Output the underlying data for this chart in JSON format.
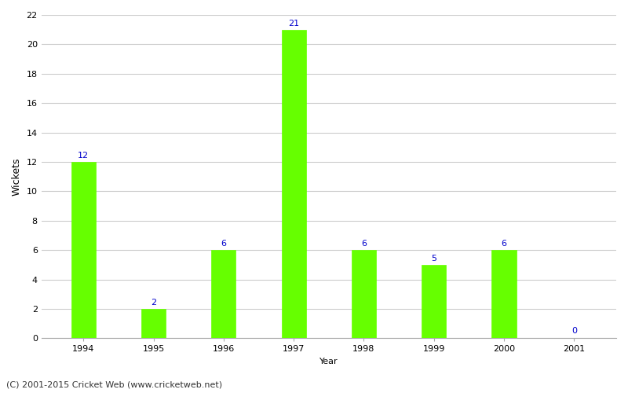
{
  "years": [
    "1994",
    "1995",
    "1996",
    "1997",
    "1998",
    "1999",
    "2000",
    "2001"
  ],
  "values": [
    12,
    2,
    6,
    21,
    6,
    5,
    6,
    0
  ],
  "bar_color": "#66ff00",
  "bar_edge_color": "#66ff00",
  "label_color": "#0000cc",
  "xlabel": "Year",
  "ylabel": "Wickets",
  "ylim": [
    0,
    22
  ],
  "yticks": [
    0,
    2,
    4,
    6,
    8,
    10,
    12,
    14,
    16,
    18,
    20,
    22
  ],
  "footnote": "(C) 2001-2015 Cricket Web (www.cricketweb.net)",
  "background_color": "#ffffff",
  "grid_color": "#cccccc",
  "label_fontsize": 8,
  "axis_fontsize": 8,
  "ylabel_fontsize": 9,
  "footnote_fontsize": 8,
  "bar_width": 0.35
}
